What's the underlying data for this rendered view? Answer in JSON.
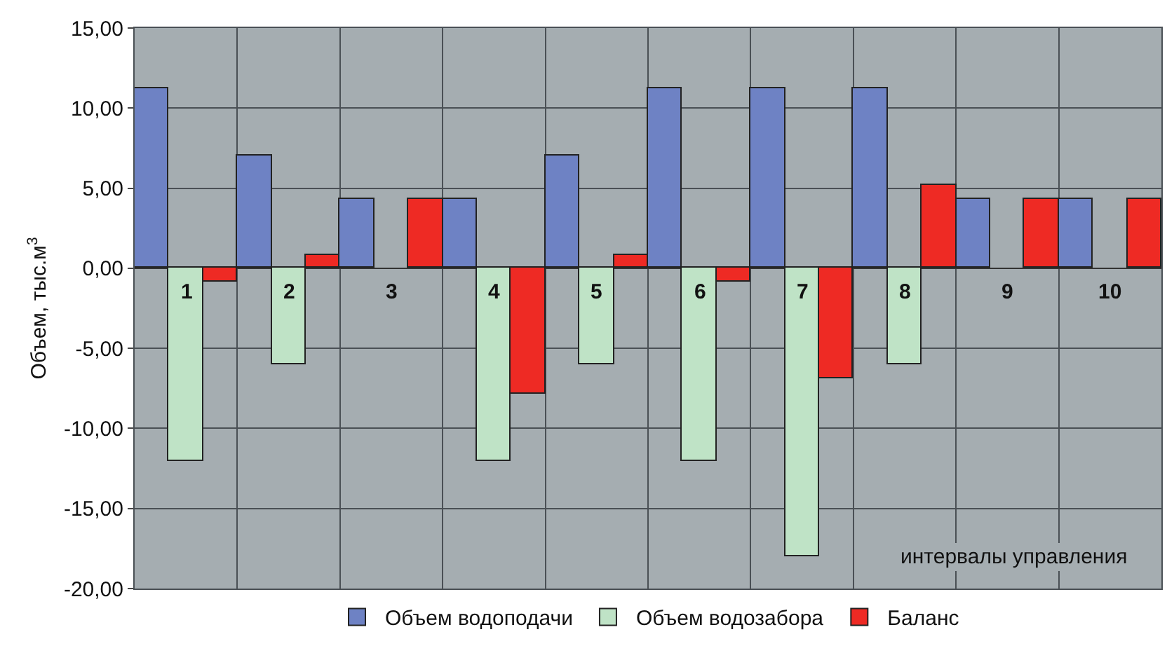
{
  "chart_data": {
    "type": "bar",
    "xlabel": "интервалы управления",
    "ylabel": "Объем, тыс.м$^{3}$",
    "categories": [
      "1",
      "2",
      "3",
      "4",
      "5",
      "6",
      "7",
      "8",
      "9",
      "10"
    ],
    "series": [
      {
        "name": "Объем водоподачи",
        "color": "#6e82c4",
        "values": [
          11.2,
          7.0,
          4.3,
          4.3,
          7.0,
          11.2,
          11.2,
          11.2,
          4.3,
          4.3
        ]
      },
      {
        "name": "Объем водозабора",
        "color": "#bfe3c6",
        "values": [
          -12.0,
          -6.0,
          null,
          -12.0,
          -6.0,
          -12.0,
          -18.0,
          -6.0,
          null,
          null
        ]
      },
      {
        "name": "Баланс",
        "color": "#ee2a24",
        "values": [
          -0.8,
          0.8,
          4.3,
          -7.8,
          0.8,
          -0.8,
          -6.9,
          5.2,
          4.3,
          4.3
        ]
      }
    ],
    "ylim": [
      -20,
      15
    ],
    "yticks": [
      {
        "value": -20,
        "label": "-20,00"
      },
      {
        "value": -15,
        "label": "-15,00"
      },
      {
        "value": -10,
        "label": "-10,00"
      },
      {
        "value": -5,
        "label": "-5,00"
      },
      {
        "value": 0,
        "label": "0,00"
      },
      {
        "value": 5,
        "label": "5,00"
      },
      {
        "value": 10,
        "label": "10,00"
      },
      {
        "value": 15,
        "label": "15,00"
      }
    ],
    "grid": true,
    "legend": "bottom"
  }
}
